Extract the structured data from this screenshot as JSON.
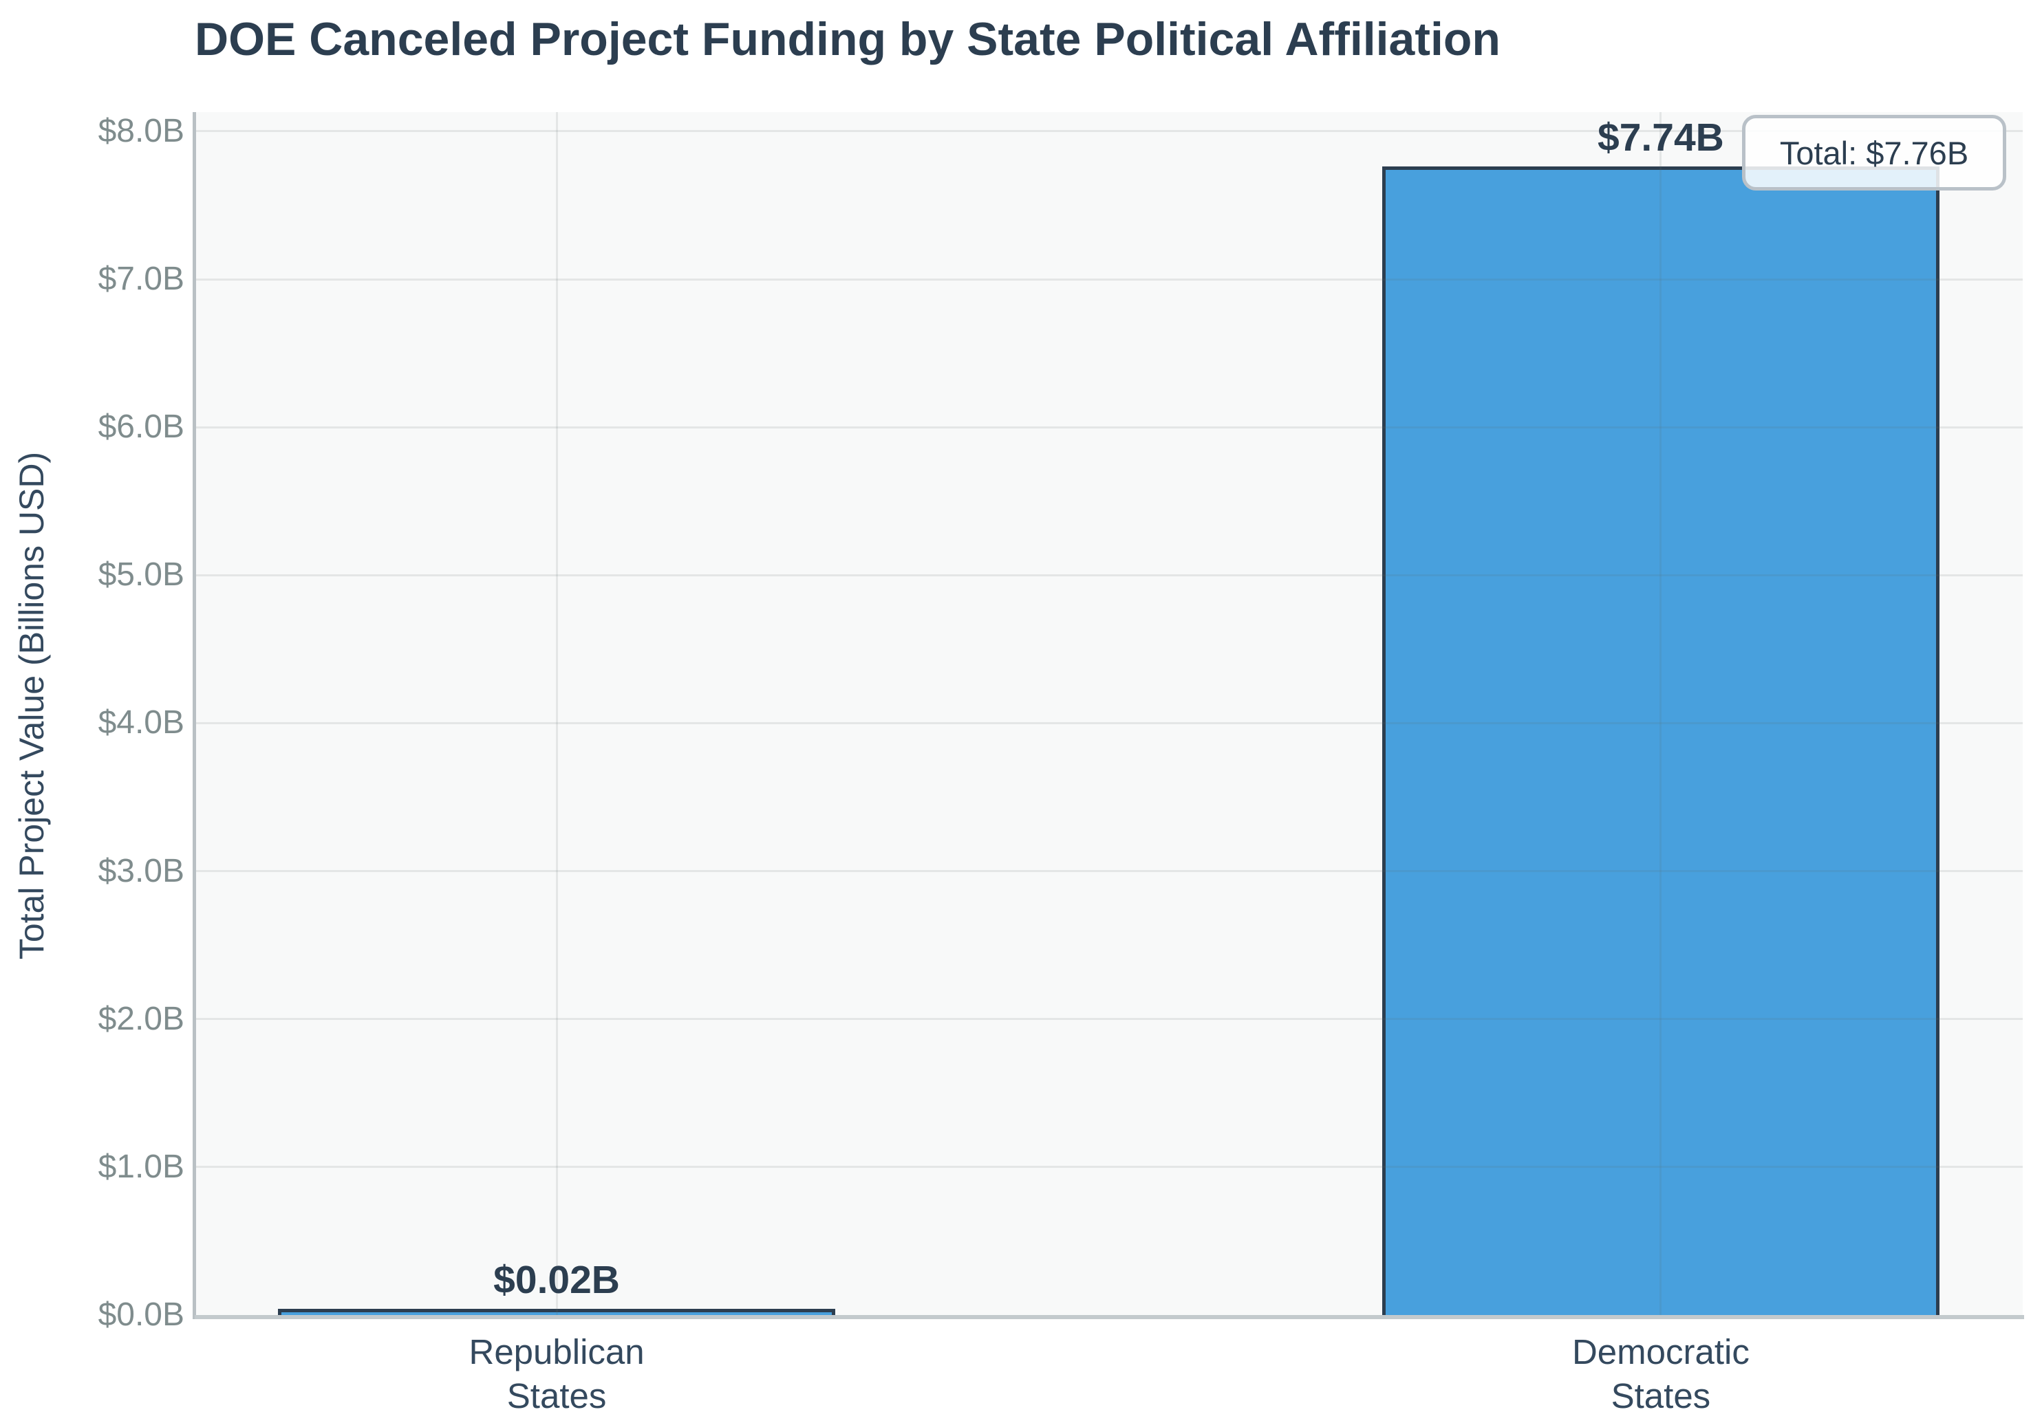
{
  "chart_data": {
    "type": "bar",
    "title": "DOE Canceled Project Funding by State Political Affiliation",
    "ylabel": "Total Project Value (Billions USD)",
    "xlabel": "",
    "categories": [
      "Republican\nStates",
      "Democratic\nStates"
    ],
    "values": [
      0.02,
      7.74
    ],
    "bar_labels": [
      "$0.02B",
      "$7.74B"
    ],
    "annotation": "Total: $7.76B",
    "yticks": {
      "values": [
        0,
        1,
        2,
        3,
        4,
        5,
        6,
        7,
        8
      ],
      "labels": [
        "$0.0B",
        "$1.0B",
        "$2.0B",
        "$3.0B",
        "$4.0B",
        "$5.0B",
        "$6.0B",
        "$7.0B",
        "$8.0B"
      ]
    },
    "ylim": [
      0,
      8.13
    ],
    "grid": true,
    "legend": "none",
    "colors": {
      "bar_fill": "#48a0dd",
      "bar_edge": "#2c3e50",
      "title_text": "#2c3e50",
      "ytick_text": "#7f8c8d",
      "xtick_text": "#34495e",
      "plot_background": "#f8f9f9",
      "axis_line": "#c3cacd",
      "annotation_border": "#b9c1c8"
    }
  }
}
